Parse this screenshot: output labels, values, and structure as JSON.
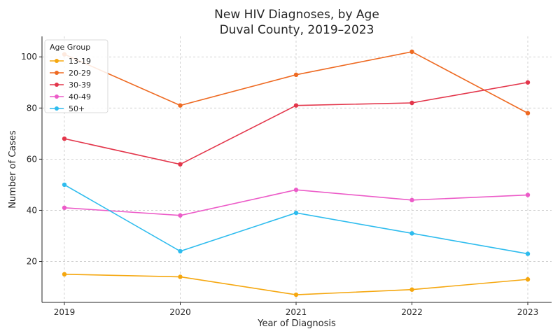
{
  "chart_data": {
    "type": "line",
    "title": "New HIV Diagnoses, by Age",
    "subtitle": "Duval County, 2019–2023",
    "xlabel": "Year of Diagnosis",
    "ylabel": "Number of Cases",
    "x": [
      "2019",
      "2020",
      "2021",
      "2022",
      "2023"
    ],
    "ylim": [
      4,
      108
    ],
    "yticks": [
      "20",
      "40",
      "60",
      "80",
      "100"
    ],
    "grid": true,
    "legend": {
      "title": "Age Group",
      "placement": "top-left"
    },
    "series": [
      {
        "name": "13-19",
        "color": "#f5a70f",
        "values": [
          15,
          14,
          7,
          9,
          13
        ]
      },
      {
        "name": "20-29",
        "color": "#ee6a22",
        "values": [
          101,
          81,
          93,
          102,
          78
        ]
      },
      {
        "name": "30-39",
        "color": "#e3364b",
        "values": [
          68,
          58,
          81,
          82,
          90
        ]
      },
      {
        "name": "40-49",
        "color": "#ec5bc8",
        "values": [
          41,
          38,
          48,
          44,
          46
        ]
      },
      {
        "name": "50+",
        "color": "#2ebcee",
        "values": [
          50,
          24,
          39,
          31,
          23
        ]
      }
    ]
  }
}
